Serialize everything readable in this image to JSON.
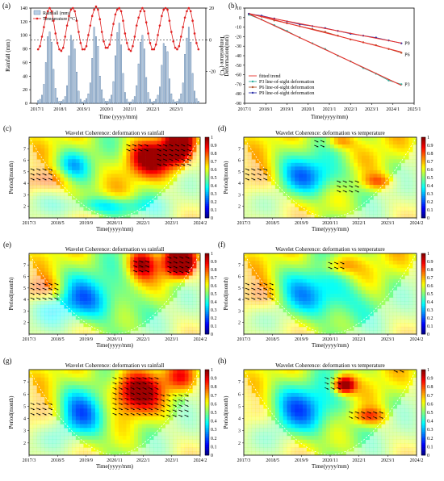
{
  "chart_data": [
    {
      "id": "a",
      "panel_label": "(a)",
      "type": "bar",
      "title": "",
      "xlabel": "Time (yyyy/mm)",
      "ylabel": "Rainfall (mm)",
      "y2label": "Temperature (°C)",
      "ylim": [
        0,
        140
      ],
      "y2lim": [
        -40,
        20
      ],
      "legend": [
        "Rainfall (mm)",
        "Temperature (°C)"
      ],
      "x_tick_labels": [
        "2017/1",
        "2018/1",
        "2019/1",
        "2020/1",
        "2021/1",
        "2022/1",
        "2023/1"
      ],
      "y_ticks": [
        0,
        20,
        40,
        60,
        80,
        100,
        120,
        140
      ],
      "y2_ticks": [
        -20,
        0,
        20
      ],
      "series": [
        {
          "name": "Rainfall (mm)",
          "values": [
            4,
            6,
            12,
            28,
            60,
            98,
            105,
            90,
            50,
            22,
            8,
            3,
            3,
            5,
            10,
            26,
            70,
            100,
            92,
            80,
            46,
            18,
            6,
            2,
            4,
            7,
            14,
            30,
            66,
            112,
            98,
            84,
            40,
            20,
            7,
            3,
            3,
            6,
            12,
            32,
            70,
            104,
            118,
            86,
            44,
            16,
            6,
            2,
            2,
            5,
            10,
            26,
            58,
            90,
            100,
            80,
            38,
            16,
            6,
            2,
            3,
            6,
            12,
            24,
            56,
            88,
            84,
            76,
            36,
            14,
            5,
            2,
            3,
            6,
            14,
            30,
            72,
            96,
            112,
            90,
            44,
            18,
            7,
            3
          ]
        },
        {
          "name": "Temperature (°C)",
          "values": [
            -6,
            -4,
            2,
            8,
            14,
            18,
            20,
            18,
            12,
            4,
            -2,
            -6,
            -7,
            -5,
            2,
            9,
            15,
            19,
            20,
            18,
            12,
            5,
            -2,
            -6,
            -6,
            -4,
            3,
            9,
            15,
            19,
            21,
            19,
            13,
            5,
            -1,
            -5,
            -5,
            -3,
            3,
            10,
            16,
            19,
            20,
            18,
            12,
            4,
            -2,
            -6,
            -7,
            -4,
            2,
            9,
            14,
            18,
            20,
            18,
            11,
            4,
            -2,
            -6,
            -6,
            -3,
            3,
            9,
            15,
            19,
            20,
            19,
            12,
            5,
            -1,
            -5,
            -6,
            -4,
            2,
            8,
            14,
            18,
            20,
            18,
            12,
            4,
            -2,
            -6
          ]
        }
      ]
    },
    {
      "id": "b",
      "panel_label": "(b)",
      "type": "line",
      "title": "",
      "xlabel": "Time(yyyy/mm)",
      "ylabel": "Deformation(mm)",
      "ylim": [
        -90,
        10
      ],
      "xlim": [
        "2017/1",
        "2025/1"
      ],
      "x_tick_labels": [
        "2017/1",
        "2018/1",
        "2019/1",
        "2020/1",
        "2021/1",
        "2022/1",
        "2023/1",
        "2024/1",
        "2025/1"
      ],
      "y_ticks": [
        10,
        0,
        -10,
        -20,
        -30,
        -40,
        -50,
        -60,
        -70,
        -80,
        -90
      ],
      "legend": [
        "fitted trend",
        "P3 line-of-sight deformation",
        "P6 line-of-sight deformation",
        "P9 line-of-sight deformation"
      ],
      "annotations": [
        "P9",
        "P6",
        "P3"
      ],
      "colors": {
        "fitted": "#e8302a",
        "p3": "#2fae9c",
        "p6": "#b2532a",
        "p9": "#2b2fa8"
      },
      "series": [
        {
          "name": "P3 line-of-sight deformation",
          "x": [
            2017.2,
            2017.8,
            2018.4,
            2019.0,
            2019.6,
            2020.2,
            2020.8,
            2021.4,
            2022.0,
            2022.6,
            2023.2,
            2023.8,
            2024.4
          ],
          "values": [
            3,
            -2,
            -8,
            -14,
            -21,
            -27,
            -33,
            -40,
            -46,
            -53,
            -59,
            -66,
            -70
          ]
        },
        {
          "name": "P6 line-of-sight deformation",
          "x": [
            2017.2,
            2017.8,
            2018.4,
            2019.0,
            2019.6,
            2020.2,
            2020.8,
            2021.4,
            2022.0,
            2022.6,
            2023.2,
            2023.8,
            2024.4
          ],
          "values": [
            4,
            1,
            -3,
            -6,
            -9,
            -12,
            -15,
            -19,
            -23,
            -26,
            -29,
            -33,
            -37
          ]
        },
        {
          "name": "P9 line-of-sight deformation",
          "x": [
            2017.2,
            2017.8,
            2018.4,
            2019.0,
            2019.6,
            2020.2,
            2020.8,
            2021.4,
            2022.0,
            2022.6,
            2023.2,
            2023.8,
            2024.4
          ],
          "values": [
            4,
            2,
            -1,
            -4,
            -7,
            -9,
            -11,
            -14,
            -17,
            -19,
            -21,
            -24,
            -27
          ]
        }
      ]
    },
    {
      "id": "c",
      "panel_label": "(c)",
      "type": "heatmap",
      "title": "Wavelet Coherence: deformation vs rainfall",
      "xlabel": "Time(yyyy/mm)",
      "ylabel": "Period(month)",
      "x_tick_labels": [
        "2017/3",
        "2018/5",
        "2019/9",
        "2020/11",
        "2022/1",
        "2023/1",
        "2024/2"
      ],
      "y_tick_labels": [
        "2",
        "3",
        "4",
        "5",
        "6",
        "7"
      ],
      "colorbar_ticks": [
        "0",
        "0.1",
        "0.2",
        "0.3",
        "0.4",
        "0.5",
        "0.6",
        "0.7",
        "0.8",
        "0.9",
        "1"
      ]
    },
    {
      "id": "d",
      "panel_label": "(d)",
      "type": "heatmap",
      "title": "Wavelet Coherence: deformation vs temperature",
      "xlabel": "Time(yyyy/mm)",
      "ylabel": "Period(month)",
      "x_tick_labels": [
        "2017/3",
        "2018/5",
        "2019/9",
        "2020/11",
        "2022/1",
        "2023/1",
        "2024/2"
      ],
      "y_tick_labels": [
        "2",
        "3",
        "4",
        "5",
        "6",
        "7"
      ],
      "colorbar_ticks": [
        "0",
        "0.1",
        "0.2",
        "0.3",
        "0.4",
        "0.5",
        "0.6",
        "0.7",
        "0.8",
        "0.9",
        "1"
      ]
    },
    {
      "id": "e",
      "panel_label": "(e)",
      "type": "heatmap",
      "title": "Wavelet Coherence: deformation vs rainfall",
      "xlabel": "Time(yyyy/mm)",
      "ylabel": "Period(month)",
      "x_tick_labels": [
        "2017/3",
        "2018/5",
        "2019/9",
        "2020/11",
        "2022/1",
        "2023/1",
        "2024/2"
      ],
      "y_tick_labels": [
        "2",
        "3",
        "4",
        "5",
        "6",
        "7"
      ],
      "colorbar_ticks": [
        "0",
        "0.1",
        "0.2",
        "0.3",
        "0.4",
        "0.5",
        "0.6",
        "0.7",
        "0.8",
        "0.9",
        "1"
      ]
    },
    {
      "id": "f",
      "panel_label": "(f)",
      "type": "heatmap",
      "title": "Wavelet Coherence: deformation vs temperature",
      "xlabel": "Time(yyyy/mm)",
      "ylabel": "Period(month)",
      "x_tick_labels": [
        "2017/3",
        "2018/5",
        "2019/9",
        "2020/11",
        "2022/1",
        "2023/1",
        "2024/2"
      ],
      "y_tick_labels": [
        "2",
        "3",
        "4",
        "5",
        "6",
        "7"
      ],
      "colorbar_ticks": [
        "0",
        "0.1",
        "0.2",
        "0.3",
        "0.4",
        "0.5",
        "0.6",
        "0.7",
        "0.8",
        "0.9",
        "1"
      ]
    },
    {
      "id": "g",
      "panel_label": "(g)",
      "type": "heatmap",
      "title": "Wavelet Coherence: deformation vs rainfall",
      "xlabel": "Time(yyyy/mm)",
      "ylabel": "Period(month)",
      "x_tick_labels": [
        "2017/3",
        "2018/5",
        "2019/9",
        "2020/11",
        "2022/1",
        "2023/1",
        "2024/2"
      ],
      "y_tick_labels": [
        "2",
        "3",
        "4",
        "5",
        "6",
        "7"
      ],
      "colorbar_ticks": [
        "0",
        "0.1",
        "0.2",
        "0.3",
        "0.4",
        "0.5",
        "0.6",
        "0.7",
        "0.8",
        "0.9",
        "1"
      ]
    },
    {
      "id": "h",
      "panel_label": "(h)",
      "type": "heatmap",
      "title": "Wavelet Coherence: deformation vs temperature",
      "xlabel": "Time(yyyy/mm)",
      "ylabel": "Period(month)",
      "x_tick_labels": [
        "2017/3",
        "2018/5",
        "2019/9",
        "2020/11",
        "2022/1",
        "2023/1",
        "2024/2"
      ],
      "y_tick_labels": [
        "2",
        "3",
        "4",
        "5",
        "6",
        "7"
      ],
      "colorbar_ticks": [
        "0",
        "0.1",
        "0.2",
        "0.3",
        "0.4",
        "0.5",
        "0.6",
        "0.7",
        "0.8",
        "0.9",
        "1"
      ]
    }
  ]
}
